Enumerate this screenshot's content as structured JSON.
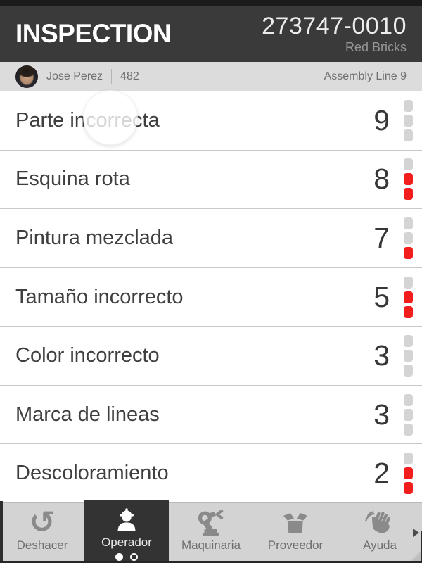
{
  "header": {
    "title": "INSPECTION",
    "order_number": "273747-0010",
    "product": "Red Bricks"
  },
  "user_bar": {
    "name": "Jose Perez",
    "operator_id": "482",
    "location": "Assembly Line 9"
  },
  "defects": [
    {
      "label": "Parte incorrecta",
      "count": "9",
      "indicators": [
        "gray",
        "gray",
        "gray"
      ],
      "ripple": true
    },
    {
      "label": "Esquina rota",
      "count": "8",
      "indicators": [
        "gray",
        "red",
        "red"
      ]
    },
    {
      "label": "Pintura mezclada",
      "count": "7",
      "indicators": [
        "gray",
        "gray",
        "red"
      ]
    },
    {
      "label": "Tamaño incorrecto",
      "count": "5",
      "indicators": [
        "gray",
        "red",
        "red"
      ]
    },
    {
      "label": "Color incorrecto",
      "count": "3",
      "indicators": [
        "gray",
        "gray",
        "gray"
      ]
    },
    {
      "label": "Marca de lineas",
      "count": "3",
      "indicators": [
        "gray",
        "gray",
        "gray"
      ]
    },
    {
      "label": "Descoloramiento",
      "count": "2",
      "indicators": [
        "gray",
        "red",
        "red"
      ]
    }
  ],
  "tab_bar": {
    "tabs": [
      {
        "label": "Deshacer",
        "icon": "undo-icon",
        "glyph": "↺",
        "selected": false
      },
      {
        "label": "Operador",
        "icon": "worker-icon",
        "selected": true,
        "page_dots": {
          "count": 2,
          "active": 0
        }
      },
      {
        "label": "Maquinaria",
        "icon": "robot-arm-icon",
        "selected": false
      },
      {
        "label": "Proveedor",
        "icon": "box-icon",
        "selected": false
      },
      {
        "label": "Ayuda",
        "icon": "hand-icon",
        "selected": false
      }
    ],
    "more_indicator": "chevron-right-icon"
  },
  "colors": {
    "header_bg": "#3a3a3a",
    "accent_red": "#f21d1d",
    "indicator_gray": "#d4d4d4",
    "tab_selected_bg": "#333333"
  }
}
